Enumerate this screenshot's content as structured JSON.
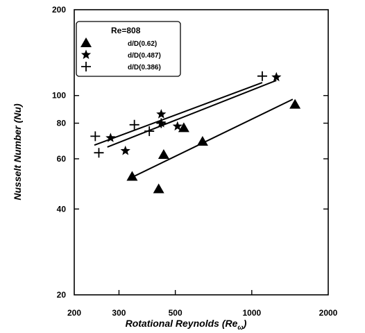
{
  "chart_data": {
    "type": "scatter",
    "xscale": "log",
    "yscale": "log",
    "xlim": [
      200,
      2000
    ],
    "ylim": [
      20,
      200
    ],
    "x_tick_labels": [
      "200",
      "300",
      "500",
      "1000",
      "2000"
    ],
    "x_ticks": [
      200,
      300,
      500,
      1000,
      2000
    ],
    "y_tick_labels": [
      "20",
      "40",
      "60",
      "80",
      "100",
      "200"
    ],
    "y_ticks": [
      20,
      40,
      60,
      80,
      100,
      200
    ],
    "xlabel_main": "Rotational Reynolds (Re",
    "xlabel_sub": "ω",
    "xlabel_end": ")",
    "ylabel": "Nusselt Number (Nu)",
    "legend_title": "Re=808",
    "legend_placement": "top-left",
    "grid": false,
    "series": [
      {
        "name": "d/D(0.62)",
        "marker": "triangle",
        "points": [
          [
            338,
            52
          ],
          [
            430,
            47
          ],
          [
            450,
            62
          ],
          [
            540,
            77
          ],
          [
            640,
            69
          ],
          [
            1480,
            93
          ]
        ],
        "fit": [
          [
            335,
            51.5
          ],
          [
            1450,
            97
          ]
        ]
      },
      {
        "name": "d/D(0.487)",
        "marker": "star",
        "points": [
          [
            278,
            71
          ],
          [
            318,
            64
          ],
          [
            440,
            86
          ],
          [
            440,
            80
          ],
          [
            510,
            78
          ],
          [
            1250,
            116
          ]
        ],
        "fit": [
          [
            270,
            66
          ],
          [
            1250,
            113
          ]
        ]
      },
      {
        "name": "d/D(0.386)",
        "marker": "plus",
        "points": [
          [
            242,
            72
          ],
          [
            250,
            63
          ],
          [
            345,
            79
          ],
          [
            395,
            75
          ],
          [
            440,
            80
          ],
          [
            1100,
            117
          ]
        ],
        "fit": [
          [
            240,
            67
          ],
          [
            1100,
            111
          ]
        ]
      }
    ]
  }
}
